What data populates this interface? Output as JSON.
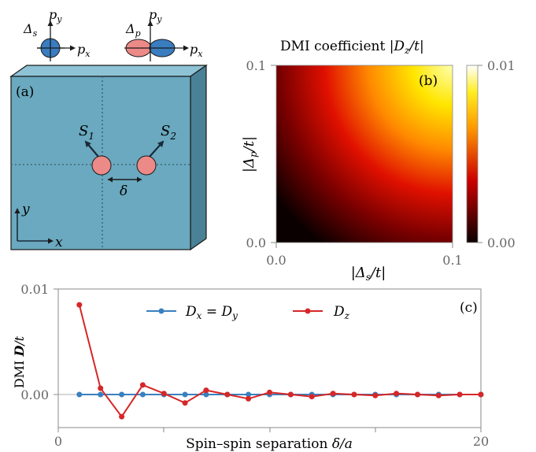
{
  "colors": {
    "slab_front": "#6aa9bf",
    "slab_top": "#8ec3d6",
    "slab_side": "#4a8196",
    "spin": "#ec8a88",
    "dz_line": "#d62728",
    "dxy_line": "#3a80bf",
    "grid": "#555555",
    "orbital_blue": "#3a7cc0"
  },
  "panel_a": {
    "label": "(a)",
    "s_orbital": {
      "delta": "Δ",
      "delta_sub": "s",
      "py": "p",
      "py_sub": "y",
      "px": "p",
      "px_sub": "x"
    },
    "p_orbital": {
      "delta": "Δ",
      "delta_sub": "p",
      "py": "p",
      "py_sub": "y",
      "px": "p",
      "px_sub": "x"
    },
    "spin1": "S",
    "spin1_sub": "1",
    "spin2": "S",
    "spin2_sub": "2",
    "separation": "δ",
    "axis_y": "y",
    "axis_x": "x"
  },
  "chart_data": [
    {
      "type": "heatmap",
      "panel_label": "(b)",
      "title": "DMI coefficient |D_z/t|",
      "title_text": "DMI coefficient |",
      "title_var": "D",
      "title_sub": "z",
      "title_end": "/t|",
      "xlabel": "|Δ_s/t|",
      "ylabel": "|Δ_p/t|",
      "xlim": [
        0.0,
        0.1
      ],
      "ylim": [
        0.0,
        0.1
      ],
      "x_ticks": [
        "0.0",
        "0.1"
      ],
      "y_ticks": [
        "0.0",
        "0.1"
      ],
      "colorbar": {
        "range": [
          0.0,
          0.01
        ],
        "ticks": [
          "0.00",
          "0.01"
        ],
        "colormap": "hot"
      }
    },
    {
      "type": "line",
      "panel_label": "(c)",
      "xlabel": "Spin–spin separation δ/a",
      "xlabel_text": "Spin–spin separation ",
      "xlabel_var": "δ/a",
      "ylabel": "DMI D/t",
      "xlim": [
        0,
        20
      ],
      "ylim": [
        -0.003,
        0.01
      ],
      "x_ticks": [
        "0",
        "20"
      ],
      "y_ticks": [
        "0.00",
        "0.01"
      ],
      "x": [
        1,
        2,
        3,
        4,
        5,
        6,
        7,
        8,
        9,
        10,
        11,
        12,
        13,
        14,
        15,
        16,
        17,
        18,
        19,
        20
      ],
      "series": [
        {
          "name": "D_x = D_y",
          "legend_label": "Dx = Dy",
          "color": "#3a80bf",
          "values": [
            0,
            0,
            0,
            0,
            0,
            0,
            0,
            0,
            0,
            0,
            0,
            0,
            0,
            0,
            0,
            0,
            0,
            0,
            0,
            0
          ]
        },
        {
          "name": "D_z",
          "legend_label": "Dz",
          "color": "#d62728",
          "values": [
            0.0085,
            0.0006,
            -0.0021,
            0.0009,
            0.0001,
            -0.0008,
            0.0004,
            0.0,
            -0.0004,
            0.0002,
            0.0,
            -0.0002,
            0.0001,
            0.0,
            -0.0001,
            0.0001,
            0.0,
            -0.0001,
            0.0,
            0.0
          ]
        }
      ]
    }
  ]
}
